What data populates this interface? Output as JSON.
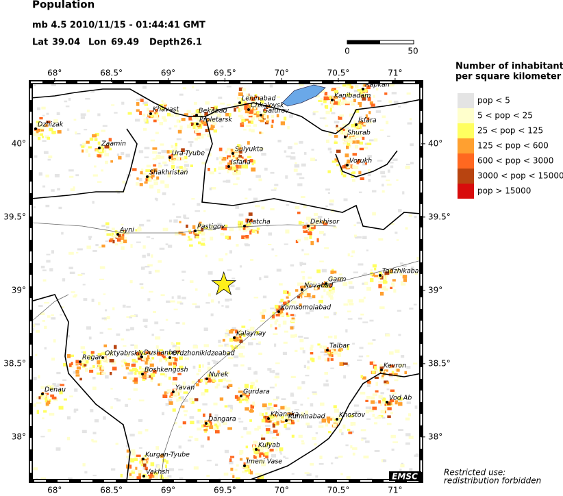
{
  "header": {
    "title": "Population",
    "event": "mb 4.5  2010/11/15 - 01:44:41 GMT",
    "lat_label": "Lat",
    "lat": 39.04,
    "lon_label": "Lon",
    "lon": 69.49,
    "depth_label": "Depth",
    "depth": 26.1
  },
  "scale": {
    "labels": [
      "0",
      "50"
    ]
  },
  "map": {
    "xlim": [
      67.79,
      71.23
    ],
    "ylim": [
      37.7,
      40.42
    ],
    "xticks": [
      {
        "value": 68,
        "label": "68°"
      },
      {
        "value": 68.5,
        "label": "68.5°"
      },
      {
        "value": 69,
        "label": "69°"
      },
      {
        "value": 69.5,
        "label": "69.5°"
      },
      {
        "value": 70,
        "label": "70°"
      },
      {
        "value": 70.5,
        "label": "70.5°"
      },
      {
        "value": 71,
        "label": "71°"
      }
    ],
    "yticks": [
      {
        "value": 40,
        "label": "40°"
      },
      {
        "value": 39.5,
        "label": "39.5°"
      },
      {
        "value": 39,
        "label": "39°"
      },
      {
        "value": 38.5,
        "label": "38.5°"
      },
      {
        "value": 38,
        "label": "38°"
      }
    ],
    "cities": [
      "Dzhizak",
      "Zaamin",
      "Khavast",
      "Bekabad",
      "Proletarsk",
      "Leninabad",
      "Chkalovsk",
      "Gafurov",
      "Kanibadam",
      "Rapkan",
      "Isfara",
      "Shurab",
      "Vorukh",
      "Sulyukta",
      "Isfana",
      "Ura-Tyube",
      "Shakhristan",
      "Ayni",
      "Pastigov",
      "Matcha",
      "Dekhisor",
      "Tadzhikabad",
      "Novabad",
      "Garm",
      "Komsomolabad",
      "Kalaynay",
      "Talbar",
      "Dushanbe",
      "Ordzhonikidzeabad",
      "Regar",
      "Oktyabrskiy",
      "Boshkengosh",
      "Nurek",
      "Yavan",
      "Denau",
      "Gurdara",
      "Kevron",
      "Vod Ab",
      "Khostov",
      "Dangara",
      "Khanaka",
      "Kuminabad",
      "Kulyab",
      "Kurgan-Tyube",
      "Imeni Vase",
      "Vakhsh"
    ]
  },
  "legend": {
    "title": [
      "Number of inhabitants",
      "per square kilometer"
    ],
    "items": [
      {
        "label": "pop < 5",
        "color": "#e4e4e4"
      },
      {
        "label": "5 < pop < 25",
        "color": "#ffffcc"
      },
      {
        "label": "25 < pop < 125",
        "color": "#ffff60"
      },
      {
        "label": "125 < pop < 600",
        "color": "#ffa030"
      },
      {
        "label": "600 < pop < 3000",
        "color": "#ff6820"
      },
      {
        "label": "3000 < pop < 15000",
        "color": "#b84410"
      },
      {
        "label": "pop > 15000",
        "color": "#d80c0c"
      }
    ]
  },
  "footer": {
    "badge": "EMSC",
    "notice": [
      "Restricted use:",
      "redistribution forbidden"
    ]
  }
}
